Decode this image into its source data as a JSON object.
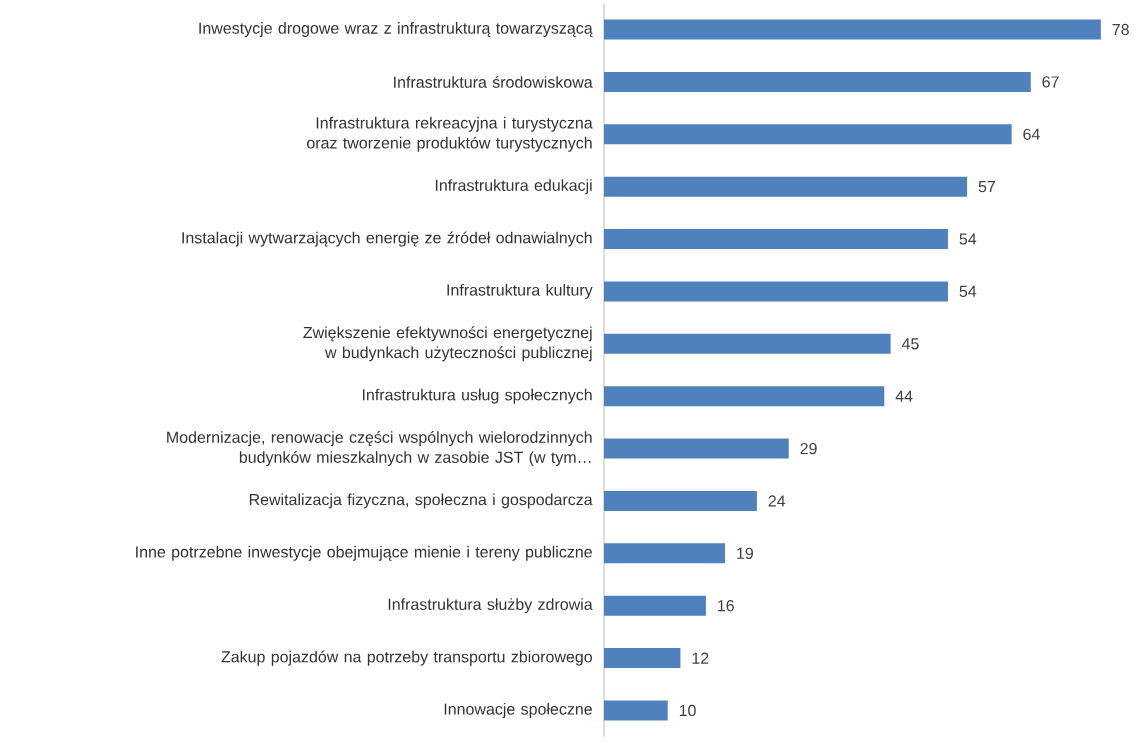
{
  "chart_data": {
    "type": "bar",
    "orientation": "horizontal",
    "color": "#4f81bd",
    "data_labels": true,
    "categories": [
      "Inwestycje drogowe wraz z infrastrukturą towarzyszącą",
      "Infrastruktura środowiskowa",
      "Infrastruktura rekreacyjna i turystyczna oraz tworzenie produktów turystycznych",
      "Infrastruktura edukacji",
      "Instalacji wytwarzających energię ze źródeł odnawialnych",
      "Infrastruktura kultury",
      "Zwiększenie efektywności energetycznej w budynkach użyteczności publicznej",
      "Infrastruktura usług społecznych",
      "Modernizacje, renowacje części wspólnych wielorodzinnych budynków mieszkalnych w zasobie JST (w tym…",
      "Rewitalizacja fizyczna, społeczna i gospodarcza",
      "Inne potrzebne inwestycje obejmujące mienie i tereny publiczne",
      "Infrastruktura służby zdrowia",
      "Zakup pojazdów na potrzeby transportu zbiorowego",
      "Innowacje społeczne"
    ],
    "values": [
      78,
      67,
      64,
      57,
      54,
      54,
      45,
      44,
      29,
      24,
      19,
      16,
      12,
      10
    ]
  }
}
